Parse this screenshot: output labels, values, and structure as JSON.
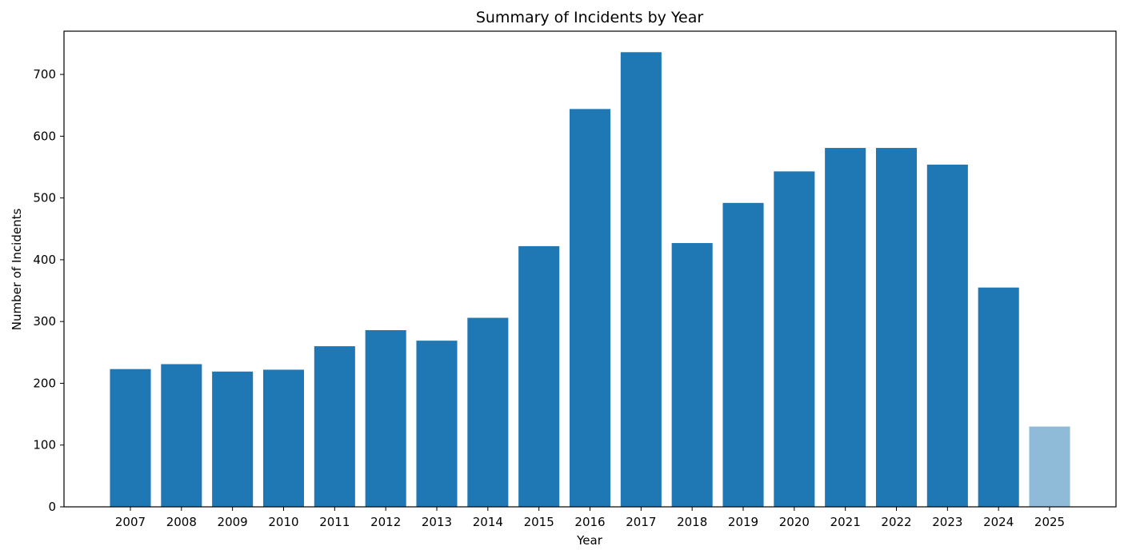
{
  "chart_data": {
    "type": "bar",
    "title": "Summary of Incidents by Year",
    "xlabel": "Year",
    "ylabel": "Number of Incidents",
    "categories": [
      "2007",
      "2008",
      "2009",
      "2010",
      "2011",
      "2012",
      "2013",
      "2014",
      "2015",
      "2016",
      "2017",
      "2018",
      "2019",
      "2020",
      "2021",
      "2022",
      "2023",
      "2024",
      "2025"
    ],
    "values": [
      223,
      231,
      219,
      222,
      260,
      286,
      269,
      306,
      422,
      644,
      736,
      427,
      492,
      543,
      581,
      581,
      554,
      355,
      130
    ],
    "ylim": [
      0,
      770
    ],
    "yticks": [
      0,
      100,
      200,
      300,
      400,
      500,
      600,
      700
    ],
    "ytick_labels": [
      "0",
      "100",
      "200",
      "300",
      "400",
      "500",
      "600",
      "700"
    ],
    "grid": false,
    "legend": "none",
    "colors": {
      "bar": "#1f77b4",
      "bar_highlight": "#8fbbd9",
      "axis": "#000000",
      "background": "#ffffff"
    },
    "highlighted_categories": [
      "2025"
    ]
  }
}
